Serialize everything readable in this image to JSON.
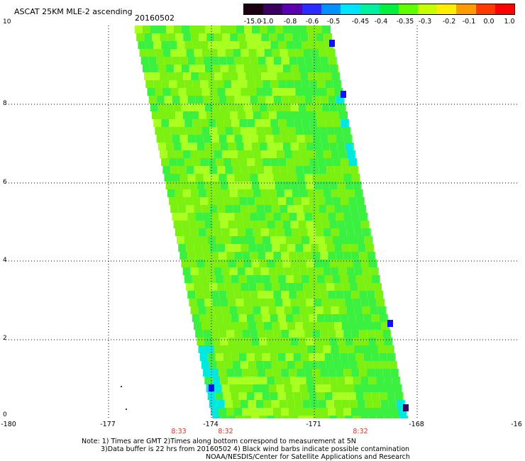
{
  "header": {
    "title": "ASCAT 25KM MLE-2 ascending",
    "date": "20160502"
  },
  "colorbar": {
    "labels": [
      "-15.0",
      "-1.0",
      "-0.8",
      "-0.6",
      "-0.5",
      "-0.45",
      "-0.4",
      "-0.35",
      "-0.3",
      "-0.2",
      "-0.1",
      "0.0",
      "1.0"
    ],
    "colors": [
      "#1a0010",
      "#3a0060",
      "#5a00b0",
      "#2b2bff",
      "#0090ff",
      "#00e5ff",
      "#00f0a0",
      "#00f040",
      "#60ff00",
      "#c8ff00",
      "#ffee00",
      "#ff9a00",
      "#ff3a00",
      "#ff0000"
    ]
  },
  "axes": {
    "x_ticks": [
      "-180",
      "-177",
      "-174",
      "-171",
      "-168",
      "-16"
    ],
    "y_ticks": [
      "0",
      "2",
      "4",
      "6",
      "8",
      "10"
    ],
    "times": [
      "8:33",
      "8:32",
      "8:32"
    ]
  },
  "notes": {
    "line1": "Note: 1) Times are GMT 2)Times along bottom correspond to measurement at 5N",
    "line2": "3)Data buffer is 22 hrs from 20160502 4) Black wind barbs indicate possible contamination",
    "line3": "NOAA/NESDIS/Center for Satellite Applications and Research"
  },
  "palette": {
    "swath_base": "#7cf010",
    "swath_alt": "#3cf040",
    "swath_light": "#a8ff20",
    "edge_cyan": "#00e8e0",
    "edge_blue": "#1010ff",
    "edge_purple": "#3a0060"
  }
}
